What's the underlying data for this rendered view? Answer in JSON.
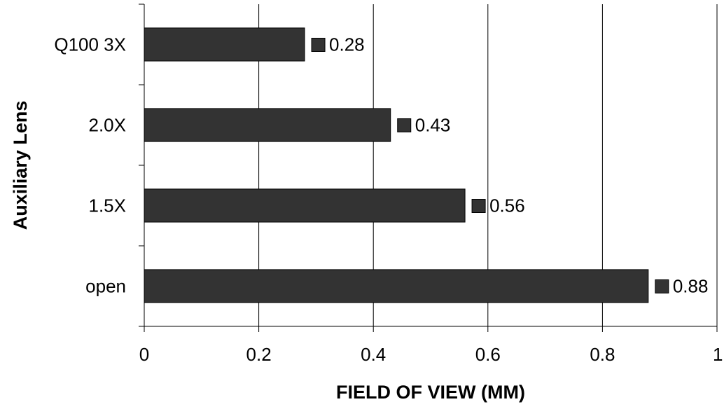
{
  "chart_data": {
    "type": "bar",
    "orientation": "horizontal",
    "title": "",
    "xlabel": "FIELD OF VIEW (MM)",
    "ylabel": "Auxiliary Lens",
    "categories": [
      "Q100 3X",
      "2.0X",
      "1.5X",
      "open"
    ],
    "values": [
      0.28,
      0.43,
      0.56,
      0.88
    ],
    "data_labels": [
      "0.28",
      "0.43",
      "0.56",
      "0.88"
    ],
    "xlim": [
      0,
      1
    ],
    "xticks": [
      0,
      0.2,
      0.4,
      0.6,
      0.8,
      1
    ],
    "xtick_labels": [
      "0",
      "0.2",
      "0.4",
      "0.6",
      "0.8",
      "1"
    ],
    "grid": "vertical",
    "legend": "none",
    "bar_color": "#333333",
    "grid_color": "#000000"
  }
}
